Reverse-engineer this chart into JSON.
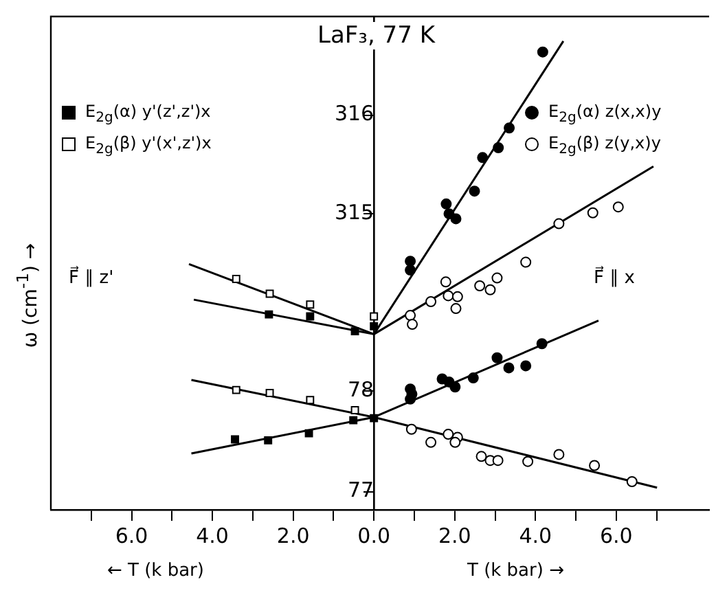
{
  "chart_data": {
    "type": "scatter",
    "title": "LaF₃, 77 K",
    "ylabel": "ω (cm$^{-1}$) →",
    "annotations": [
      "← T (k bar)",
      "T (k bar) →",
      "F⃗ ∥ z'",
      "F⃗ ∥ x"
    ],
    "xlim": [
      -8,
      8.3
    ],
    "xticks": [
      {
        "value": -7,
        "label": null
      },
      {
        "value": -6,
        "label": "6.0"
      },
      {
        "value": -5,
        "label": null
      },
      {
        "value": -4,
        "label": "4.0"
      },
      {
        "value": -3,
        "label": null
      },
      {
        "value": -2,
        "label": "2.0"
      },
      {
        "value": -1,
        "label": null
      },
      {
        "value": 0,
        "label": "0.0"
      },
      {
        "value": 1,
        "label": null
      },
      {
        "value": 2,
        "label": "2.0"
      },
      {
        "value": 3,
        "label": null
      },
      {
        "value": 4,
        "label": "4.0"
      },
      {
        "value": 5,
        "label": null
      },
      {
        "value": 6,
        "label": "6.0"
      },
      {
        "value": 7,
        "label": null
      }
    ],
    "ylim": [
      312,
      317
    ],
    "yticks": [
      315,
      316
    ],
    "y2lim": [
      76.82,
      81.72
    ],
    "y2ticks": [
      77,
      78
    ],
    "legend": "top",
    "series": [
      {
        "name": "E$_{2g}$(α) y'(z',z')x",
        "type": "scatter",
        "marker": "square",
        "color": "#000000",
        "axis": "y",
        "x": [
          -2.6,
          -1.58,
          -0.47,
          0
        ],
        "values": [
          313.98,
          313.96,
          313.81,
          313.86
        ]
      },
      {
        "name": "E$_{2g}$(β) y'(x',z')x",
        "type": "scatter",
        "marker": "square",
        "color": "#ffffff",
        "axis": "y",
        "x": [
          -3.41,
          -2.58,
          -1.58,
          0
        ],
        "values": [
          314.34,
          314.19,
          314.08,
          313.96
        ]
      },
      {
        "name": "E$_{2g}$(α) z(x,x)y",
        "type": "scatter",
        "marker": "circle",
        "color": "#000000",
        "axis": "y",
        "x": [
          0.9,
          0.9,
          1.79,
          1.86,
          2.03,
          2.49,
          2.69,
          3.08,
          3.35,
          4.18
        ],
        "values": [
          314.52,
          314.43,
          315.1,
          315.0,
          314.95,
          315.23,
          315.57,
          315.67,
          315.87,
          316.64
        ]
      },
      {
        "name": "E$_{2g}$(β) z(y,x)y",
        "type": "scatter",
        "marker": "circle",
        "color": "#ffffff",
        "axis": "y",
        "x": [
          0.9,
          0.95,
          1.41,
          1.78,
          1.84,
          2.03,
          2.07,
          2.62,
          2.88,
          3.05,
          3.76,
          4.58,
          5.42,
          6.05
        ],
        "values": [
          313.97,
          313.88,
          314.11,
          314.31,
          314.17,
          314.04,
          314.16,
          314.27,
          314.23,
          314.35,
          314.51,
          314.9,
          315.01,
          315.07
        ]
      },
      {
        "type": "scatter",
        "marker": "square",
        "color": "#000000",
        "axis": "y2",
        "x": [
          -3.44,
          -2.62,
          -1.61,
          -0.51,
          0
        ],
        "values": [
          77.52,
          77.51,
          77.58,
          77.71,
          77.73
        ]
      },
      {
        "type": "scatter",
        "marker": "square",
        "color": "#ffffff",
        "axis": "y2",
        "x": [
          -3.41,
          -2.58,
          -1.58,
          -0.47
        ],
        "values": [
          78.01,
          77.98,
          77.91,
          77.81
        ]
      },
      {
        "type": "scatter",
        "marker": "circle",
        "color": "#000000",
        "axis": "y2",
        "x": [
          0.9,
          0.94,
          0.9,
          1.69,
          1.86,
          2.01,
          2.46,
          3.05,
          3.34,
          3.76,
          4.16
        ],
        "values": [
          78.02,
          77.97,
          77.92,
          78.12,
          78.09,
          78.04,
          78.13,
          78.33,
          78.23,
          78.25,
          78.47
        ]
      },
      {
        "type": "scatter",
        "marker": "circle",
        "color": "#ffffff",
        "axis": "y2",
        "x": [
          0.93,
          1.41,
          1.84,
          2.07,
          2.01,
          2.66,
          2.88,
          3.07,
          3.81,
          4.58,
          5.46,
          6.39
        ],
        "values": [
          77.62,
          77.49,
          77.57,
          77.54,
          77.49,
          77.35,
          77.31,
          77.31,
          77.3,
          77.37,
          77.26,
          77.1
        ]
      },
      {
        "type": "line",
        "marker": "none",
        "color": "#000000",
        "axis": "y",
        "x": [
          -4.46,
          0
        ],
        "values": [
          314.13,
          313.78
        ]
      },
      {
        "type": "line",
        "marker": "none",
        "color": "#000000",
        "axis": "y",
        "x": [
          -4.58,
          0
        ],
        "values": [
          314.49,
          313.78
        ]
      },
      {
        "type": "line",
        "marker": "none",
        "color": "#000000",
        "axis": "y",
        "x": [
          0,
          4.69
        ],
        "values": [
          313.78,
          316.75
        ]
      },
      {
        "type": "line",
        "marker": "none",
        "color": "#000000",
        "axis": "y",
        "x": [
          0,
          6.92
        ],
        "values": [
          313.78,
          315.48
        ]
      },
      {
        "type": "line",
        "marker": "none",
        "color": "#000000",
        "axis": "y2",
        "x": [
          -4.52,
          0
        ],
        "values": [
          77.38,
          77.74
        ]
      },
      {
        "type": "line",
        "marker": "none",
        "color": "#000000",
        "axis": "y2",
        "x": [
          -4.52,
          0
        ],
        "values": [
          78.11,
          77.74
        ]
      },
      {
        "type": "line",
        "marker": "none",
        "color": "#000000",
        "axis": "y2",
        "x": [
          0,
          5.56
        ],
        "values": [
          77.74,
          78.7
        ]
      },
      {
        "type": "line",
        "marker": "none",
        "color": "#000000",
        "axis": "y2",
        "x": [
          0,
          7.01
        ],
        "values": [
          77.74,
          77.04
        ]
      }
    ]
  }
}
